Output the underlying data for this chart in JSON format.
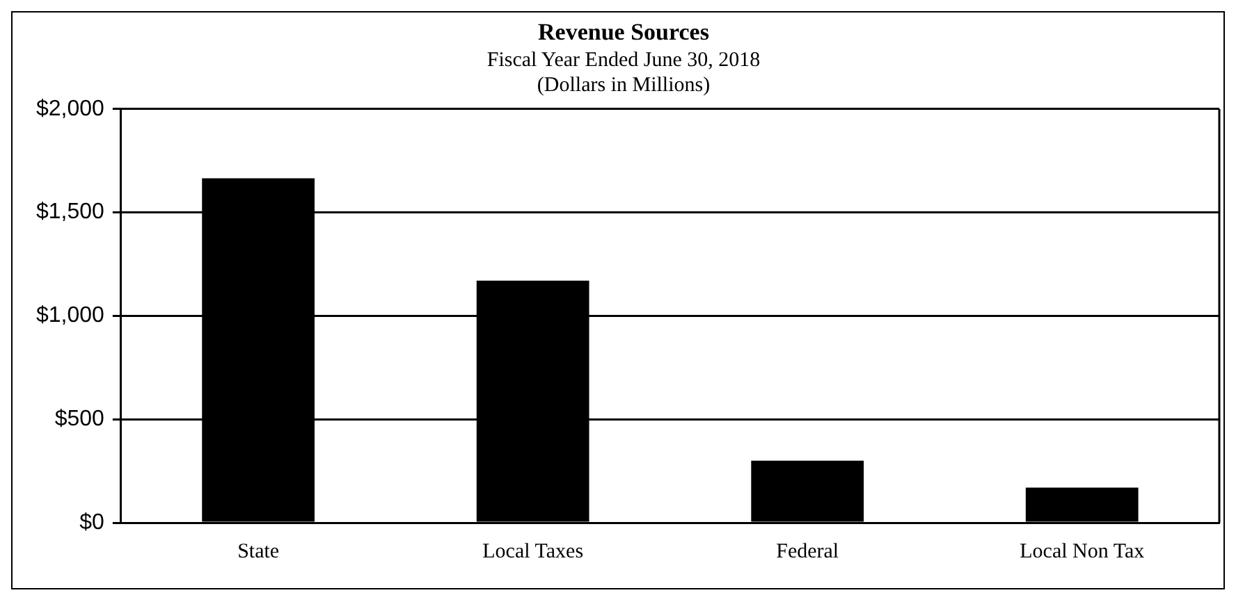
{
  "chart_data": {
    "type": "bar",
    "title": "Revenue Sources",
    "subtitle": [
      "Fiscal Year Ended June 30, 2018",
      "(Dollars in Millions)"
    ],
    "categories": [
      "State",
      "Local Taxes",
      "Federal",
      "Local Non Tax"
    ],
    "values": [
      1665,
      1170,
      300,
      170
    ],
    "color": "#000000",
    "ylim": [
      0,
      2000
    ],
    "yticks": [
      {
        "value": 0,
        "label": "$0"
      },
      {
        "value": 500,
        "label": "$500"
      },
      {
        "value": 1000,
        "label": "$1,000"
      },
      {
        "value": 1500,
        "label": "$1,500"
      },
      {
        "value": 2000,
        "label": "$2,000"
      }
    ],
    "grid": "y",
    "legend": false
  }
}
